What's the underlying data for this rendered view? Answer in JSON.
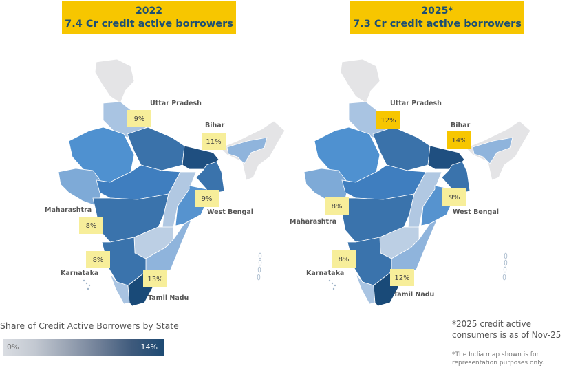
{
  "maps": [
    {
      "year": "2022",
      "subtitle": "7.4 Cr credit active borrowers",
      "fills": {
        "jk": "#e4e4e6",
        "north": "#a9c4e2",
        "raj": "#4f91d0",
        "guj": "#7eaad7",
        "up": "#3a72aa",
        "bihar": "#1f4f80",
        "mp": "#3f7ebf",
        "mah": "#3a73ac",
        "chh": "#b1c8e2",
        "odi": "#5693cf",
        "wb": "#3a73ac",
        "tel": "#bccfe4",
        "ap": "#8fb4dc",
        "kar": "#3a73ac",
        "ker": "#a9c4e2",
        "tn": "#194a78",
        "ne": "#e4e4e6",
        "assam": "#8fb4dc"
      },
      "labels": [
        {
          "state": "Uttar Pradesh",
          "value": "9%",
          "highlight": "#f7ee9a"
        },
        {
          "state": "Bihar",
          "value": "11%",
          "highlight": "#f7ee9a"
        },
        {
          "state": "West Bengal",
          "value": "9%",
          "highlight": "#f7ee9a"
        },
        {
          "state": "Maharashtra",
          "value": "8%",
          "highlight": "#f7ee9a"
        },
        {
          "state": "Karnataka",
          "value": "8%",
          "highlight": "#f7ee9a"
        },
        {
          "state": "Tamil Nadu",
          "value": "13%",
          "highlight": "#f7ee9a"
        }
      ]
    },
    {
      "year": "2025*",
      "subtitle": "7.3 Cr credit active borrowers",
      "fills": {
        "jk": "#e4e4e6",
        "north": "#a9c4e2",
        "raj": "#4f91d0",
        "guj": "#7eaad7",
        "up": "#3a72aa",
        "bihar": "#1f4f80",
        "mp": "#3f7ebf",
        "mah": "#3a73ac",
        "chh": "#b1c8e2",
        "odi": "#5693cf",
        "wb": "#3a73ac",
        "tel": "#bccfe4",
        "ap": "#8fb4dc",
        "kar": "#3a73ac",
        "ker": "#a9c4e2",
        "tn": "#194a78",
        "ne": "#e4e4e6",
        "assam": "#8fb4dc"
      },
      "labels": [
        {
          "state": "Uttar Pradesh",
          "value": "12%",
          "highlight": "#f7c600"
        },
        {
          "state": "Bihar",
          "value": "14%",
          "highlight": "#f7c600"
        },
        {
          "state": "West Bengal",
          "value": "9%",
          "highlight": "#f7ee9a"
        },
        {
          "state": "Maharashtra",
          "value": "8%",
          "highlight": "#f7ee9a"
        },
        {
          "state": "Karnataka",
          "value": "8%",
          "highlight": "#f7ee9a"
        },
        {
          "state": "Tamil Nadu",
          "value": "12%",
          "highlight": "#f7ee9a"
        }
      ]
    }
  ],
  "legend": {
    "title": "Share of Credit Active Borrowers by State",
    "min": "0%",
    "max": "14%"
  },
  "notes": {
    "date_note": "*2025 credit active consumers is as of Nov-25",
    "disclaimer": "*The India map shown is for representation purposes only."
  }
}
